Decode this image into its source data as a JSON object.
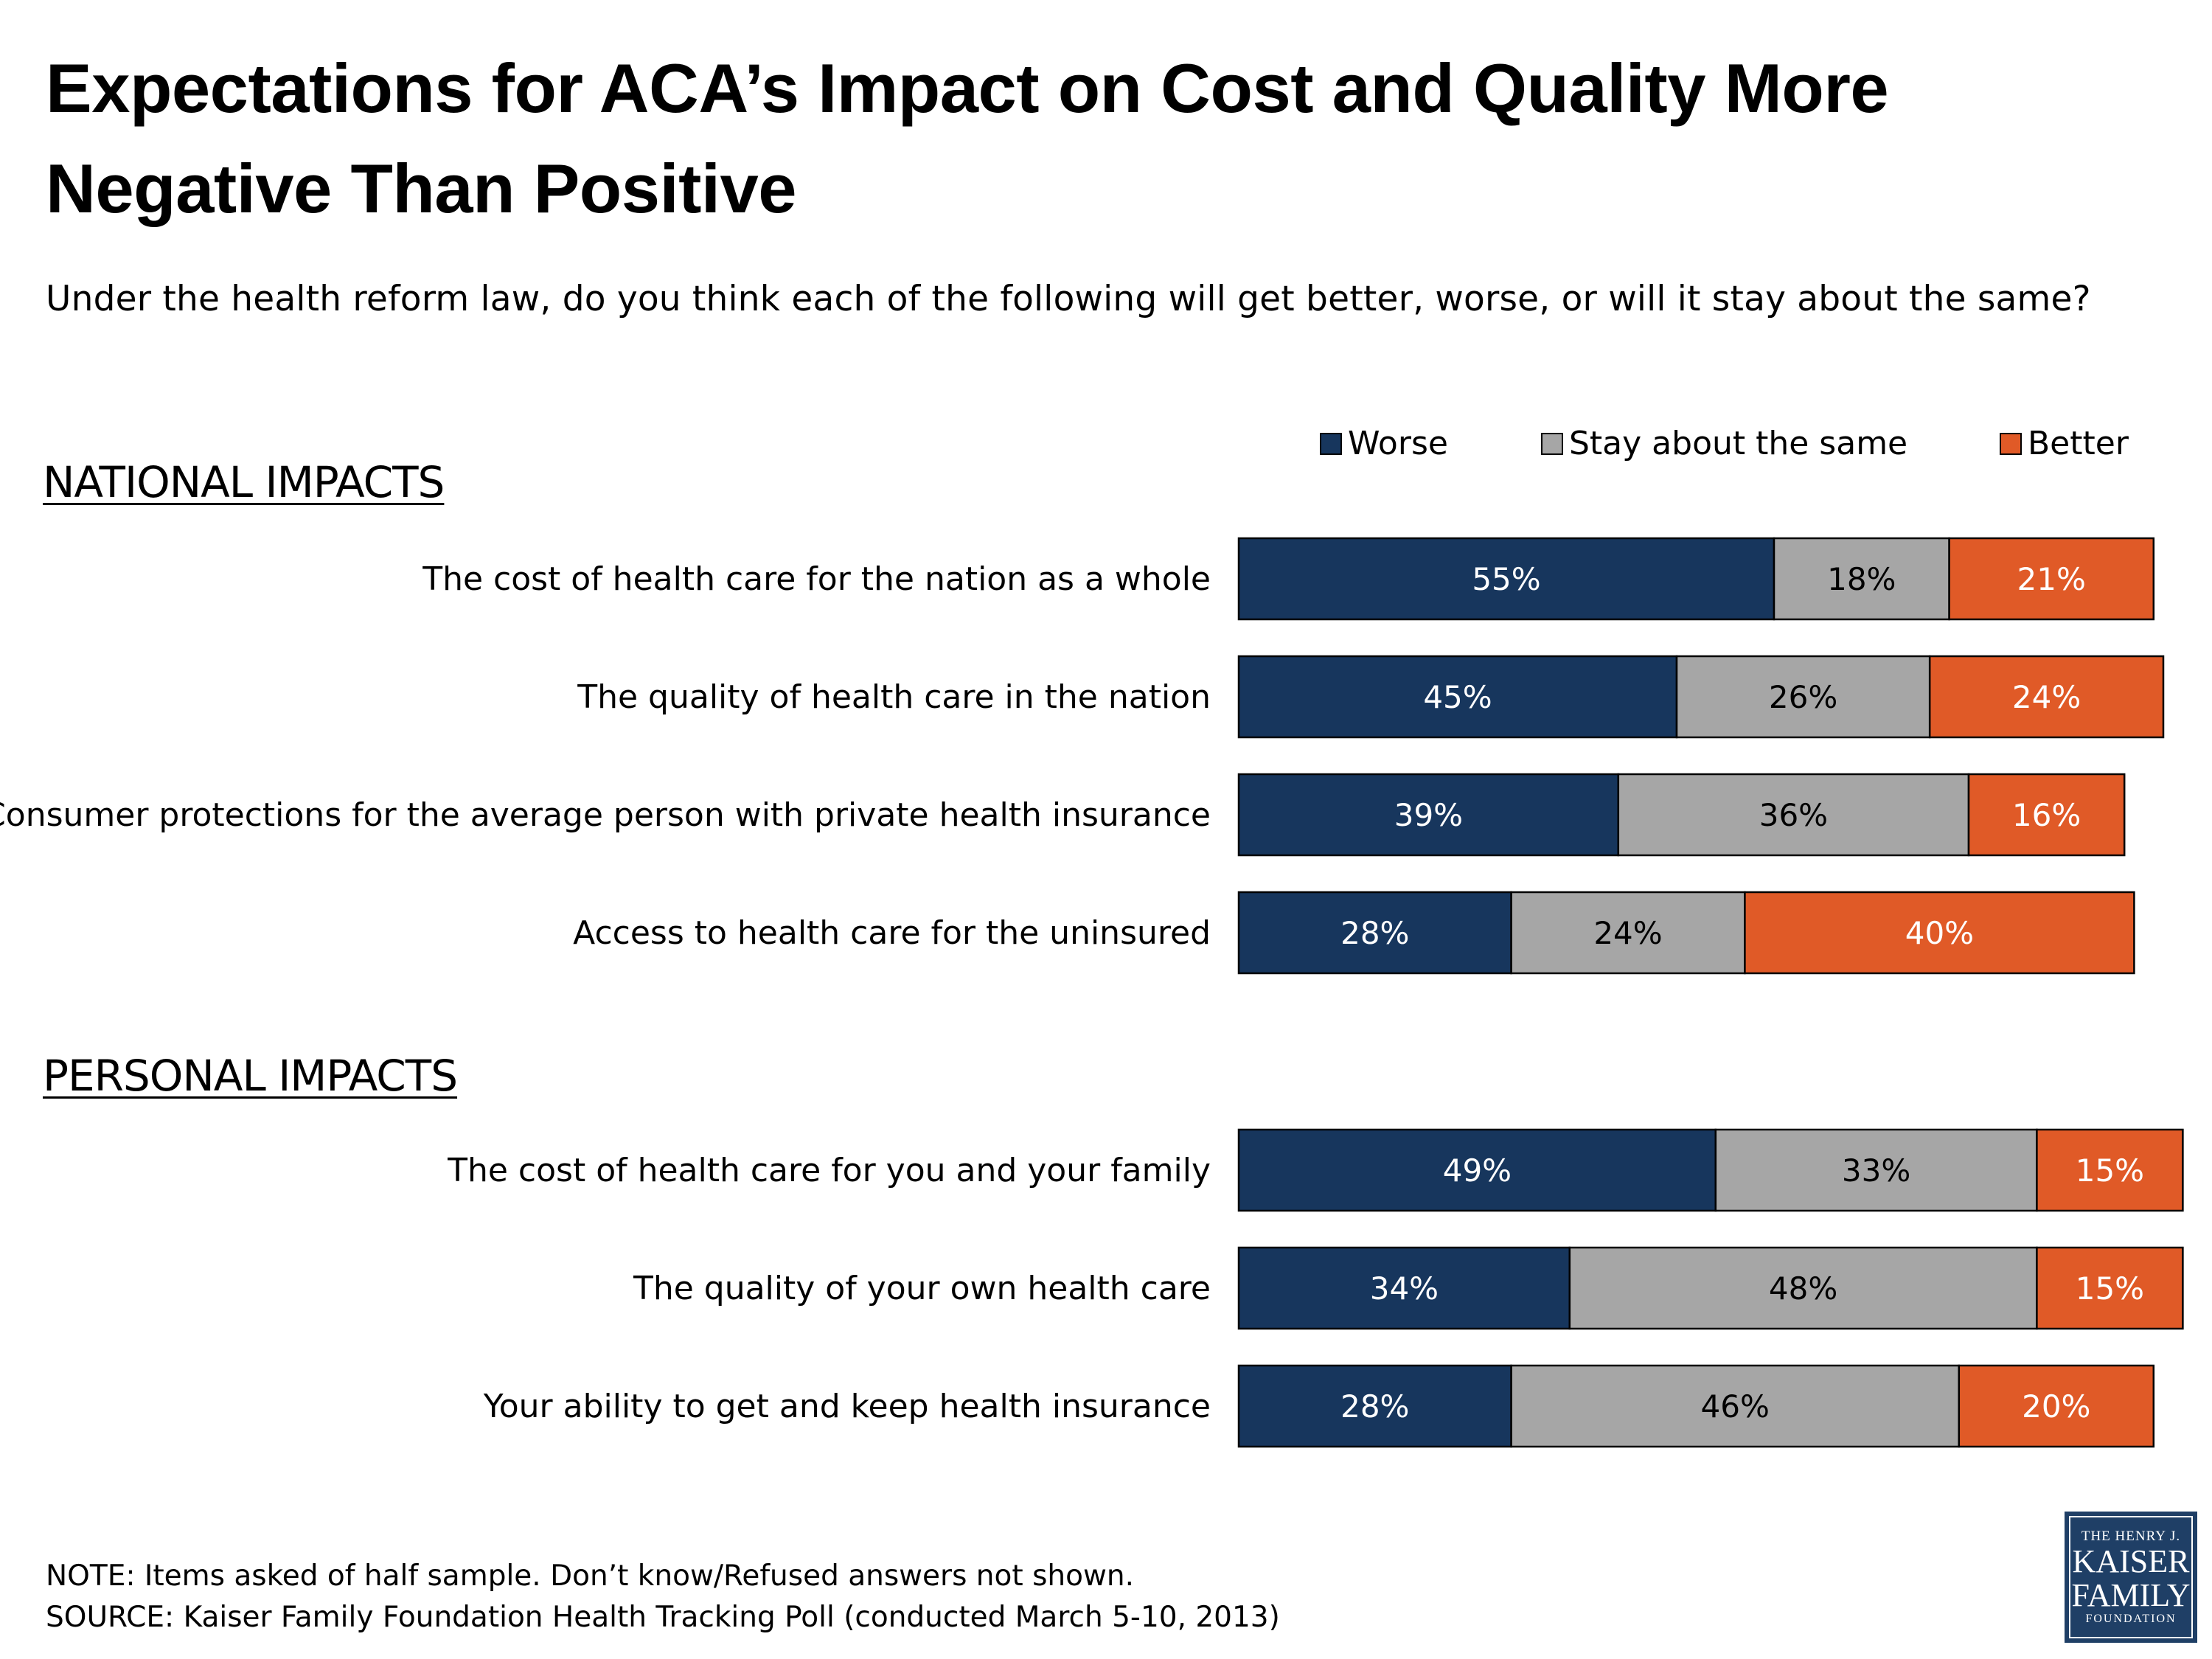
{
  "title": "Expectations for ACA’s Impact on Cost and Quality More Negative Than Positive",
  "subtitle": "Under the health reform law, do you think each of the following will get better, worse, or will it stay about the same?",
  "legend": {
    "worse": "Worse",
    "same": "Stay about the same",
    "better": "Better"
  },
  "colors": {
    "worse": "#17365d",
    "same": "#a6a6a6",
    "better": "#e05a27"
  },
  "sections": {
    "national": "NATIONAL IMPACTS",
    "personal": "PERSONAL IMPACTS"
  },
  "chart_data": {
    "type": "bar",
    "orientation": "horizontal",
    "stacked": true,
    "xlim": [
      0,
      100
    ],
    "unit": "%",
    "series": [
      {
        "name": "Worse",
        "values": [
          55,
          45,
          39,
          28,
          49,
          34,
          28
        ]
      },
      {
        "name": "Stay about the same",
        "values": [
          18,
          26,
          36,
          24,
          33,
          48,
          46
        ]
      },
      {
        "name": "Better",
        "values": [
          21,
          24,
          16,
          40,
          15,
          15,
          20
        ]
      }
    ],
    "categories": [
      "The cost of health care for the nation as a whole",
      "The quality of health care in the nation",
      "Consumer protections for the average person with private health insurance",
      "Access to health care for the uninsured",
      "The cost of health care for you and your family",
      "The quality of your own health care",
      "Your ability to get and keep health insurance"
    ],
    "category_groups": [
      "NATIONAL IMPACTS",
      "NATIONAL IMPACTS",
      "NATIONAL IMPACTS",
      "NATIONAL IMPACTS",
      "PERSONAL IMPACTS",
      "PERSONAL IMPACTS",
      "PERSONAL IMPACTS"
    ],
    "data_labels": [
      [
        "55%",
        "18%",
        "21%"
      ],
      [
        "45%",
        "26%",
        "24%"
      ],
      [
        "39%",
        "36%",
        "16%"
      ],
      [
        "28%",
        "24%",
        "40%"
      ],
      [
        "49%",
        "33%",
        "15%"
      ],
      [
        "34%",
        "48%",
        "15%"
      ],
      [
        "28%",
        "46%",
        "20%"
      ]
    ],
    "legend_position": "top-right",
    "grid": false
  },
  "notes": {
    "note": "NOTE: Items asked of half sample. Don’t know/Refused answers not shown.",
    "source": "SOURCE: Kaiser Family Foundation Health Tracking Poll (conducted March 5-10, 2013)"
  },
  "logo": {
    "line1": "THE HENRY J.",
    "line2": "KAISER",
    "line3": "FAMILY",
    "line4": "FOUNDATION"
  }
}
